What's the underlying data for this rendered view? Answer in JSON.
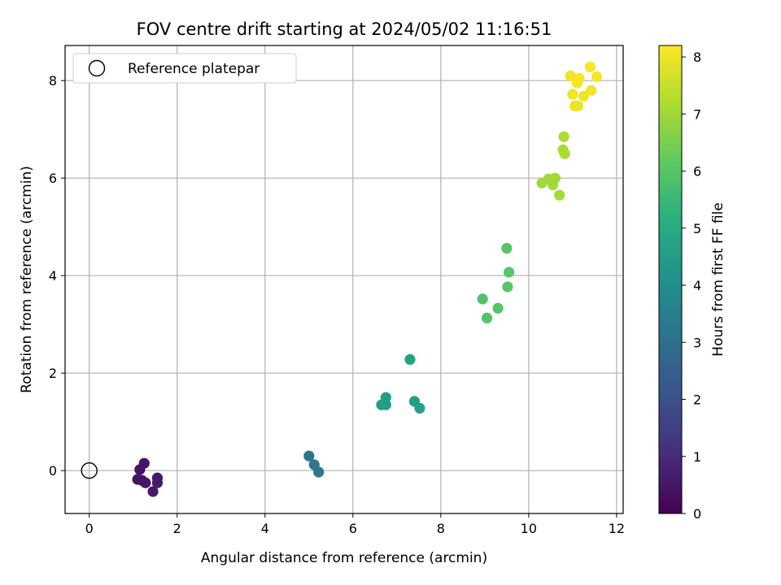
{
  "chart_data": {
    "type": "scatter",
    "title": "FOV centre drift starting at 2024/05/02 11:16:51",
    "xlabel": "Angular distance from reference (arcmin)",
    "ylabel": "Rotation from reference (arcmin)",
    "xlim": [
      -0.55,
      12.15
    ],
    "ylim": [
      -0.88,
      8.72
    ],
    "xticks": [
      0,
      2,
      4,
      6,
      8,
      10,
      12
    ],
    "yticks": [
      0,
      2,
      4,
      6,
      8
    ],
    "grid": true,
    "legend": {
      "placement": "upper-left",
      "entries": [
        {
          "label": "Reference platepar",
          "marker": "open-circle"
        }
      ]
    },
    "reference_point": {
      "x": 0,
      "y": 0
    },
    "colorbar": {
      "label": "Hours from first FF file",
      "range": [
        0,
        8.2
      ],
      "ticks": [
        0,
        1,
        2,
        3,
        4,
        5,
        6,
        7,
        8
      ],
      "colormap": "viridis"
    },
    "points": [
      {
        "x": 1.1,
        "y": -0.18,
        "hours": 0.4
      },
      {
        "x": 1.15,
        "y": 0.02,
        "hours": 0.45
      },
      {
        "x": 1.2,
        "y": -0.2,
        "hours": 0.42
      },
      {
        "x": 1.25,
        "y": 0.15,
        "hours": 0.5
      },
      {
        "x": 1.28,
        "y": -0.25,
        "hours": 0.48
      },
      {
        "x": 1.45,
        "y": -0.43,
        "hours": 0.55
      },
      {
        "x": 1.55,
        "y": -0.15,
        "hours": 0.52
      },
      {
        "x": 1.55,
        "y": -0.25,
        "hours": 0.56
      },
      {
        "x": 5.0,
        "y": 0.3,
        "hours": 3.2
      },
      {
        "x": 5.12,
        "y": 0.12,
        "hours": 3.25
      },
      {
        "x": 5.22,
        "y": -0.03,
        "hours": 3.3
      },
      {
        "x": 6.65,
        "y": 1.35,
        "hours": 4.5
      },
      {
        "x": 6.75,
        "y": 1.5,
        "hours": 4.52
      },
      {
        "x": 6.75,
        "y": 1.35,
        "hours": 4.55
      },
      {
        "x": 7.3,
        "y": 2.28,
        "hours": 4.7
      },
      {
        "x": 7.4,
        "y": 1.42,
        "hours": 4.6
      },
      {
        "x": 7.52,
        "y": 1.28,
        "hours": 4.62
      },
      {
        "x": 8.95,
        "y": 3.52,
        "hours": 5.9
      },
      {
        "x": 9.05,
        "y": 3.13,
        "hours": 5.92
      },
      {
        "x": 9.3,
        "y": 3.33,
        "hours": 5.95
      },
      {
        "x": 9.5,
        "y": 4.56,
        "hours": 6.0
      },
      {
        "x": 9.52,
        "y": 3.77,
        "hours": 5.98
      },
      {
        "x": 9.55,
        "y": 4.07,
        "hours": 6.02
      },
      {
        "x": 10.3,
        "y": 5.9,
        "hours": 7.0
      },
      {
        "x": 10.45,
        "y": 5.98,
        "hours": 7.02
      },
      {
        "x": 10.55,
        "y": 5.86,
        "hours": 7.05
      },
      {
        "x": 10.6,
        "y": 6.0,
        "hours": 7.03
      },
      {
        "x": 10.7,
        "y": 5.65,
        "hours": 7.08
      },
      {
        "x": 10.78,
        "y": 6.58,
        "hours": 7.15
      },
      {
        "x": 10.8,
        "y": 6.85,
        "hours": 7.18
      },
      {
        "x": 10.82,
        "y": 6.5,
        "hours": 7.12
      },
      {
        "x": 10.95,
        "y": 8.1,
        "hours": 8.05
      },
      {
        "x": 11.0,
        "y": 7.72,
        "hours": 8.0
      },
      {
        "x": 11.05,
        "y": 7.48,
        "hours": 7.95
      },
      {
        "x": 11.1,
        "y": 7.95,
        "hours": 8.08
      },
      {
        "x": 11.12,
        "y": 7.48,
        "hours": 7.98
      },
      {
        "x": 11.15,
        "y": 8.05,
        "hours": 8.1
      },
      {
        "x": 11.25,
        "y": 7.68,
        "hours": 8.02
      },
      {
        "x": 11.4,
        "y": 8.28,
        "hours": 8.15
      },
      {
        "x": 11.42,
        "y": 7.8,
        "hours": 8.06
      },
      {
        "x": 11.55,
        "y": 8.08,
        "hours": 8.12
      }
    ]
  }
}
